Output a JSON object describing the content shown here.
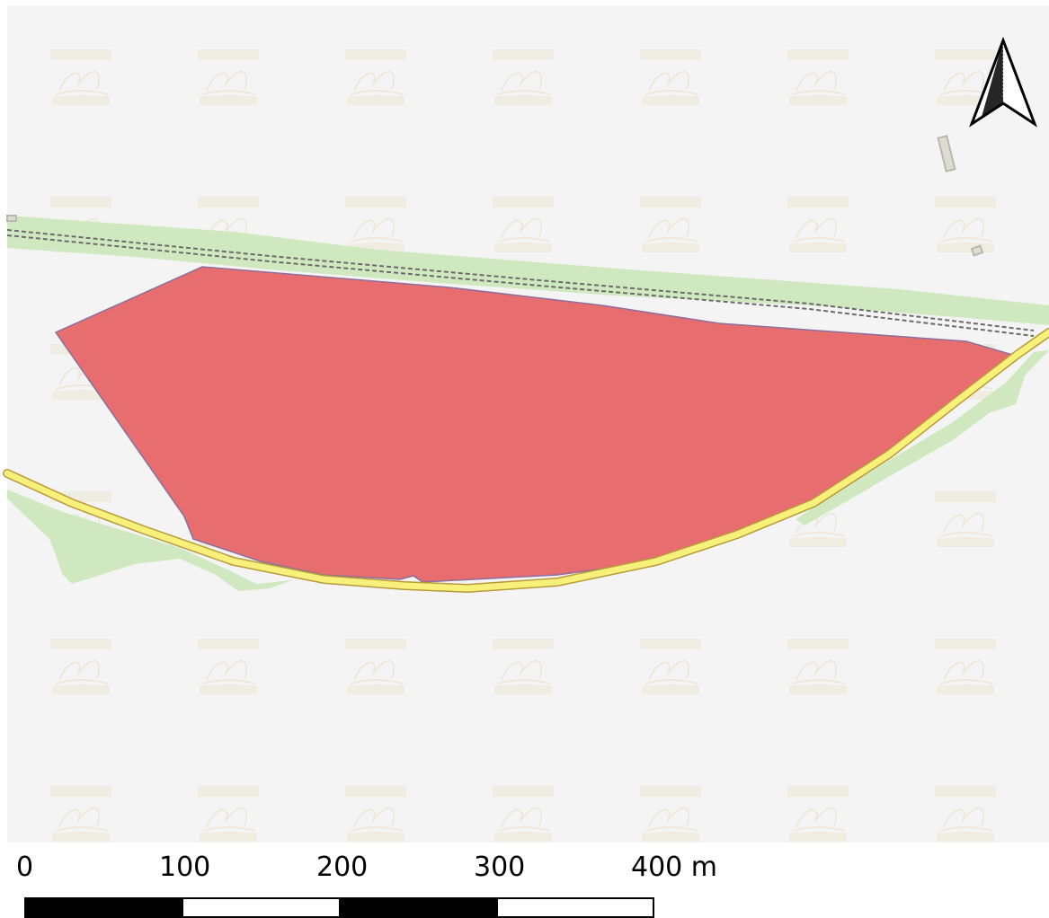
{
  "map": {
    "background_color": "#f4f4f4",
    "features": {
      "parcel": {
        "type": "polygon",
        "fill": "#e8696b",
        "stroke": "#8a6a9a",
        "opacity": 0.95
      },
      "road": {
        "type": "line",
        "color": "#f7f07a",
        "casing": "#b89a3a"
      },
      "railway": {
        "type": "line",
        "color": "#666666"
      },
      "vegetation": {
        "type": "polygon",
        "fill": "#cfe8c0"
      },
      "buildings": {
        "type": "polygon",
        "fill": "#dcdcd2",
        "stroke": "#b8b8ae"
      },
      "watermark": {
        "type": "pattern",
        "description": "faint logo watermark tiles",
        "color": "#e9e6cf"
      }
    },
    "north_arrow": {
      "icon": "north-arrow-icon"
    },
    "scale_bar": {
      "labels": [
        "0",
        "100",
        "200",
        "300",
        "400 m"
      ],
      "segments": [
        "black",
        "white",
        "black",
        "white"
      ]
    }
  }
}
